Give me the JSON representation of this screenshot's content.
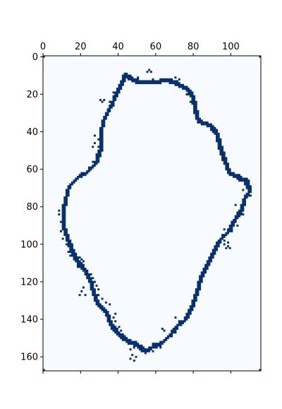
{
  "chart_data": {
    "type": "heatmap",
    "title": "",
    "xlabel": "",
    "ylabel": "",
    "xlim": [
      0,
      116
    ],
    "ylim": [
      0,
      168
    ],
    "x_ticks": [
      {
        "value": 0,
        "label": "0"
      },
      {
        "value": 20,
        "label": "20"
      },
      {
        "value": 40,
        "label": "40"
      },
      {
        "value": 60,
        "label": "60"
      },
      {
        "value": 80,
        "label": "80"
      },
      {
        "value": 100,
        "label": "100"
      }
    ],
    "y_ticks": [
      {
        "value": 0,
        "label": "0"
      },
      {
        "value": 20,
        "label": "20"
      },
      {
        "value": 40,
        "label": "40"
      },
      {
        "value": 60,
        "label": "60"
      },
      {
        "value": 80,
        "label": "80"
      },
      {
        "value": 100,
        "label": "100"
      },
      {
        "value": 120,
        "label": "120"
      },
      {
        "value": 140,
        "label": "140"
      },
      {
        "value": 160,
        "label": "160"
      }
    ],
    "background_color": "#f7fbff",
    "foreground_color": "#08306b",
    "contour_points": [
      [
        43,
        9
      ],
      [
        47,
        12
      ],
      [
        51,
        13
      ],
      [
        58,
        13
      ],
      [
        66,
        12
      ],
      [
        71,
        14
      ],
      [
        76,
        17
      ],
      [
        79,
        21
      ],
      [
        80,
        27
      ],
      [
        82,
        34
      ],
      [
        88,
        36
      ],
      [
        92,
        41
      ],
      [
        93,
        47
      ],
      [
        96,
        55
      ],
      [
        98,
        61
      ],
      [
        103,
        64
      ],
      [
        108,
        66
      ],
      [
        109,
        72
      ],
      [
        106,
        76
      ],
      [
        105,
        82
      ],
      [
        101,
        87
      ],
      [
        98,
        93
      ],
      [
        93,
        98
      ],
      [
        90,
        104
      ],
      [
        86,
        112
      ],
      [
        83,
        118
      ],
      [
        81,
        126
      ],
      [
        78,
        134
      ],
      [
        75,
        140
      ],
      [
        71,
        143
      ],
      [
        67,
        148
      ],
      [
        63,
        152
      ],
      [
        58,
        154
      ],
      [
        54,
        157
      ],
      [
        49,
        153
      ],
      [
        44,
        151
      ],
      [
        39,
        147
      ],
      [
        35,
        142
      ],
      [
        33,
        136
      ],
      [
        28,
        131
      ],
      [
        26,
        125
      ],
      [
        24,
        118
      ],
      [
        21,
        113
      ],
      [
        17,
        108
      ],
      [
        14,
        102
      ],
      [
        12,
        96
      ],
      [
        10,
        90
      ],
      [
        10,
        82
      ],
      [
        11,
        76
      ],
      [
        13,
        69
      ],
      [
        18,
        64
      ],
      [
        23,
        61
      ],
      [
        27,
        57
      ],
      [
        30,
        49
      ],
      [
        30,
        41
      ],
      [
        31,
        34
      ],
      [
        35,
        27
      ],
      [
        38,
        20
      ],
      [
        41,
        14
      ],
      [
        43,
        9
      ]
    ],
    "speckles": [
      [
        56,
        7
      ],
      [
        55,
        8
      ],
      [
        57,
        8
      ],
      [
        51,
        13
      ],
      [
        70,
        11
      ],
      [
        72,
        12
      ],
      [
        30,
        23
      ],
      [
        31,
        24
      ],
      [
        32,
        23
      ],
      [
        27,
        42
      ],
      [
        27,
        46
      ],
      [
        26,
        48
      ],
      [
        107,
        68
      ],
      [
        106,
        71
      ],
      [
        110,
        74
      ],
      [
        102,
        79
      ],
      [
        104,
        82
      ],
      [
        106,
        84
      ],
      [
        102,
        86
      ],
      [
        103,
        90
      ],
      [
        96,
        92
      ],
      [
        100,
        93
      ],
      [
        97,
        95
      ],
      [
        95,
        97
      ],
      [
        96,
        98
      ],
      [
        15,
        100
      ],
      [
        13,
        104
      ],
      [
        14,
        106
      ],
      [
        16,
        107
      ],
      [
        18,
        109
      ],
      [
        19,
        110
      ],
      [
        18,
        111
      ],
      [
        20,
        110
      ],
      [
        20,
        113
      ],
      [
        22,
        113
      ],
      [
        19,
        107
      ],
      [
        20,
        108
      ],
      [
        19,
        111
      ],
      [
        18,
        112
      ],
      [
        21,
        112
      ],
      [
        19,
        109
      ],
      [
        21,
        109
      ],
      [
        23,
        114
      ],
      [
        25,
        116
      ],
      [
        26,
        118
      ],
      [
        27,
        120
      ],
      [
        28,
        122
      ],
      [
        29,
        124
      ],
      [
        27,
        125
      ],
      [
        29,
        127
      ],
      [
        21,
        123
      ],
      [
        20,
        125
      ],
      [
        22,
        127
      ],
      [
        19,
        127
      ],
      [
        31,
        129
      ],
      [
        33,
        131
      ],
      [
        37,
        139
      ],
      [
        38,
        141
      ],
      [
        40,
        144
      ],
      [
        38,
        144
      ],
      [
        41,
        146
      ],
      [
        43,
        150
      ],
      [
        45,
        152
      ],
      [
        48,
        155
      ],
      [
        46,
        156
      ],
      [
        53,
        155
      ],
      [
        56,
        156
      ],
      [
        58,
        157
      ],
      [
        60,
        155
      ],
      [
        62,
        155
      ],
      [
        63,
        153
      ],
      [
        65,
        151
      ],
      [
        68,
        149
      ],
      [
        70,
        147
      ],
      [
        71,
        145
      ],
      [
        73,
        143
      ],
      [
        75,
        141
      ],
      [
        76,
        139
      ],
      [
        77,
        137
      ],
      [
        78,
        135
      ],
      [
        80,
        130
      ],
      [
        82,
        126
      ],
      [
        82,
        122
      ],
      [
        84,
        118
      ],
      [
        85,
        115
      ],
      [
        87,
        112
      ],
      [
        88,
        108
      ],
      [
        90,
        106
      ],
      [
        91,
        103
      ],
      [
        92,
        100
      ],
      [
        94,
        99
      ],
      [
        95,
        95
      ],
      [
        98,
        94
      ],
      [
        99,
        91
      ],
      [
        100,
        89
      ],
      [
        101,
        87
      ],
      [
        103,
        83
      ],
      [
        105,
        80
      ],
      [
        106,
        77
      ],
      [
        108,
        75
      ],
      [
        110,
        72
      ],
      [
        110,
        69
      ],
      [
        107,
        65
      ],
      [
        104,
        63
      ],
      [
        100,
        62
      ],
      [
        98,
        58
      ],
      [
        96,
        52
      ],
      [
        94,
        47
      ],
      [
        93,
        42
      ],
      [
        91,
        39
      ],
      [
        86,
        36
      ],
      [
        81,
        33
      ],
      [
        80,
        30
      ],
      [
        78,
        24
      ],
      [
        76,
        20
      ],
      [
        72,
        16
      ],
      [
        68,
        13
      ],
      [
        63,
        12
      ],
      [
        58,
        12
      ],
      [
        50,
        11
      ],
      [
        45,
        10
      ],
      [
        41,
        13
      ],
      [
        40,
        16
      ],
      [
        37,
        19
      ],
      [
        35,
        24
      ],
      [
        34,
        28
      ],
      [
        32,
        32
      ],
      [
        31,
        36
      ],
      [
        30,
        40
      ],
      [
        29,
        44
      ],
      [
        29,
        48
      ],
      [
        28,
        52
      ],
      [
        26,
        56
      ],
      [
        24,
        59
      ],
      [
        20,
        62
      ],
      [
        17,
        65
      ],
      [
        14,
        68
      ],
      [
        12,
        72
      ],
      [
        11,
        78
      ],
      [
        10,
        84
      ],
      [
        9,
        88
      ],
      [
        9,
        93
      ],
      [
        10,
        97
      ],
      [
        12,
        100
      ],
      [
        35,
        132
      ],
      [
        38,
        137
      ],
      [
        42,
        148
      ],
      [
        58,
        153
      ],
      [
        66,
        150
      ],
      [
        72,
        141
      ],
      [
        79,
        130
      ],
      [
        83,
        121
      ],
      [
        47,
        159
      ],
      [
        49,
        160
      ],
      [
        48,
        162
      ],
      [
        46,
        161
      ],
      [
        8,
        82
      ],
      [
        8,
        84
      ],
      [
        98,
        101
      ],
      [
        99,
        102
      ],
      [
        97,
        102
      ],
      [
        96,
        100
      ],
      [
        98,
        99
      ],
      [
        63,
        145
      ],
      [
        64,
        146
      ],
      [
        70,
        139
      ]
    ]
  }
}
